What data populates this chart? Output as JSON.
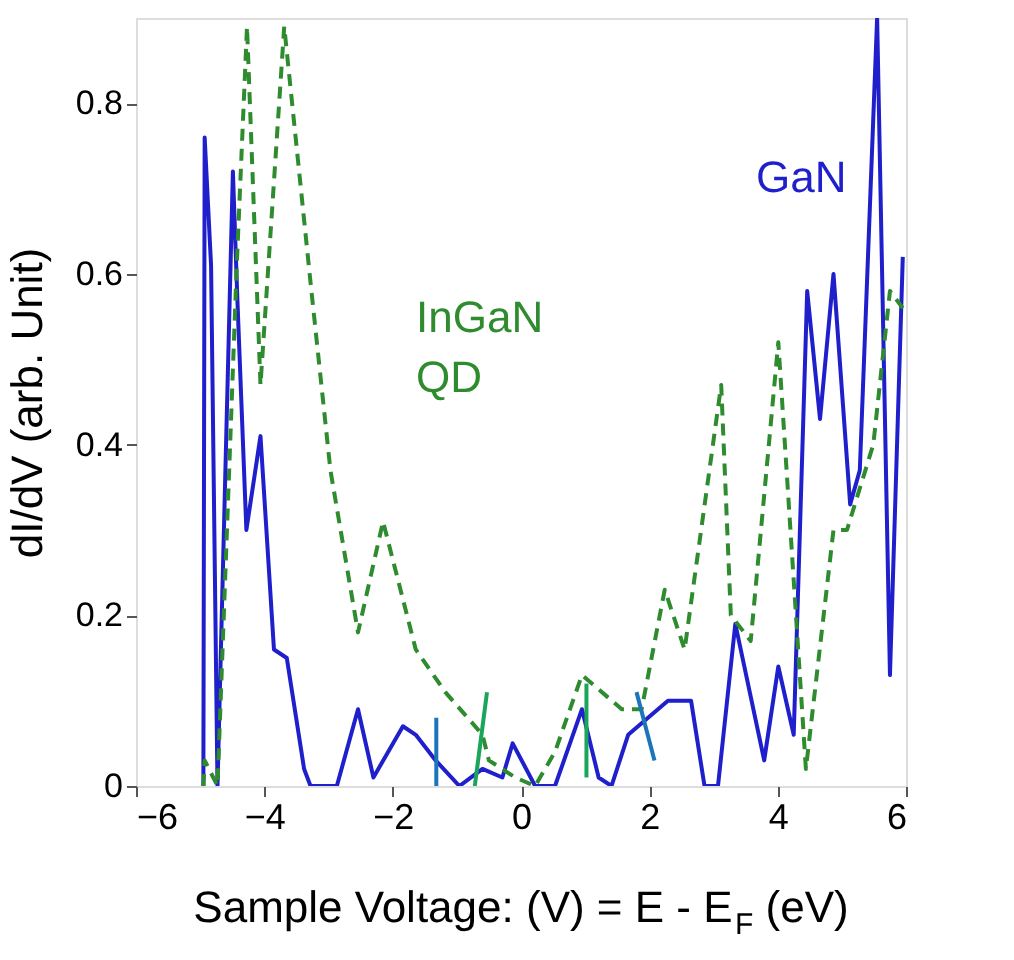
{
  "chart_data": {
    "type": "line",
    "xlabel": "Sample Voltage: (V) = E - E$_{F}$ (eV)",
    "ylabel": "dI/dV (arb. Unit)",
    "xlim": [
      -6,
      6
    ],
    "xticks": [
      -6,
      -4,
      -2,
      0,
      2,
      4,
      6
    ],
    "ylim": [
      0,
      0.9
    ],
    "yticks": [
      0,
      0.2,
      0.4,
      0.6,
      0.8
    ],
    "grid": false,
    "legend": false,
    "series": [
      {
        "name": "GaN",
        "color": "#1f1fcc",
        "line_style": "solid",
        "x": [
          -4.95,
          -4.93,
          -4.83,
          -4.73,
          -4.49,
          -4.42,
          -4.28,
          -4.06,
          -3.85,
          -3.65,
          -3.38,
          -3.28,
          -2.87,
          -2.54,
          -2.3,
          -1.84,
          -1.64,
          -1.33,
          -0.96,
          -0.6,
          -0.29,
          -0.13,
          0.22,
          0.53,
          0.95,
          1.21,
          1.41,
          1.67,
          2.29,
          2.65,
          2.86,
          3.07,
          3.34,
          3.79,
          4.01,
          4.25,
          4.46,
          4.66,
          4.87,
          5.13,
          5.28,
          5.55,
          5.75,
          5.95
        ],
        "values": [
          0,
          0.76,
          0.61,
          0,
          0.72,
          0.57,
          0.3,
          0.41,
          0.16,
          0.15,
          0.02,
          0,
          0,
          0.09,
          0.01,
          0.07,
          0.06,
          0.03,
          0,
          0.02,
          0.01,
          0.05,
          0,
          0,
          0.09,
          0.01,
          0,
          0.06,
          0.1,
          0.1,
          0,
          0,
          0.19,
          0.03,
          0.14,
          0.06,
          0.58,
          0.43,
          0.6,
          0.33,
          0.37,
          0.9,
          0.13,
          0.62
        ]
      },
      {
        "name": "InGaN QD",
        "color": "#2e8b2e",
        "line_style": "dashed",
        "x": [
          -4.95,
          -4.93,
          -4.73,
          -4.43,
          -4.27,
          -4.06,
          -3.69,
          -3.28,
          -2.97,
          -2.54,
          -2.15,
          -1.64,
          -1.18,
          -0.6,
          -0.5,
          -0.09,
          0.22,
          0.53,
          0.95,
          1.57,
          1.88,
          2.24,
          2.55,
          3.12,
          3.27,
          3.58,
          4.01,
          4.44,
          4.87,
          5.08,
          5.49,
          5.75,
          5.95
        ],
        "values": [
          0,
          0.03,
          0,
          0.61,
          0.89,
          0.47,
          0.89,
          0.59,
          0.37,
          0.18,
          0.31,
          0.16,
          0.11,
          0.06,
          0.03,
          0.01,
          0,
          0.04,
          0.13,
          0.09,
          0.09,
          0.23,
          0.16,
          0.47,
          0.2,
          0.17,
          0.52,
          0.02,
          0.3,
          0.3,
          0.4,
          0.58,
          0.56
        ]
      },
      {
        "color": "#1a75bc",
        "line_style": "solid",
        "x": [
          -1.32,
          -1.32
        ],
        "values": [
          0,
          0.08
        ]
      },
      {
        "color": "#1aa55a",
        "line_style": "solid",
        "x": [
          -0.72,
          -0.53
        ],
        "values": [
          0,
          0.11
        ]
      },
      {
        "color": "#1aa55a",
        "line_style": "solid",
        "x": [
          1.02,
          1.02
        ],
        "values": [
          0.01,
          0.12
        ]
      },
      {
        "color": "#1a75bc",
        "line_style": "solid",
        "x": [
          2.08,
          1.8
        ],
        "values": [
          0.03,
          0.11
        ]
      }
    ]
  }
}
